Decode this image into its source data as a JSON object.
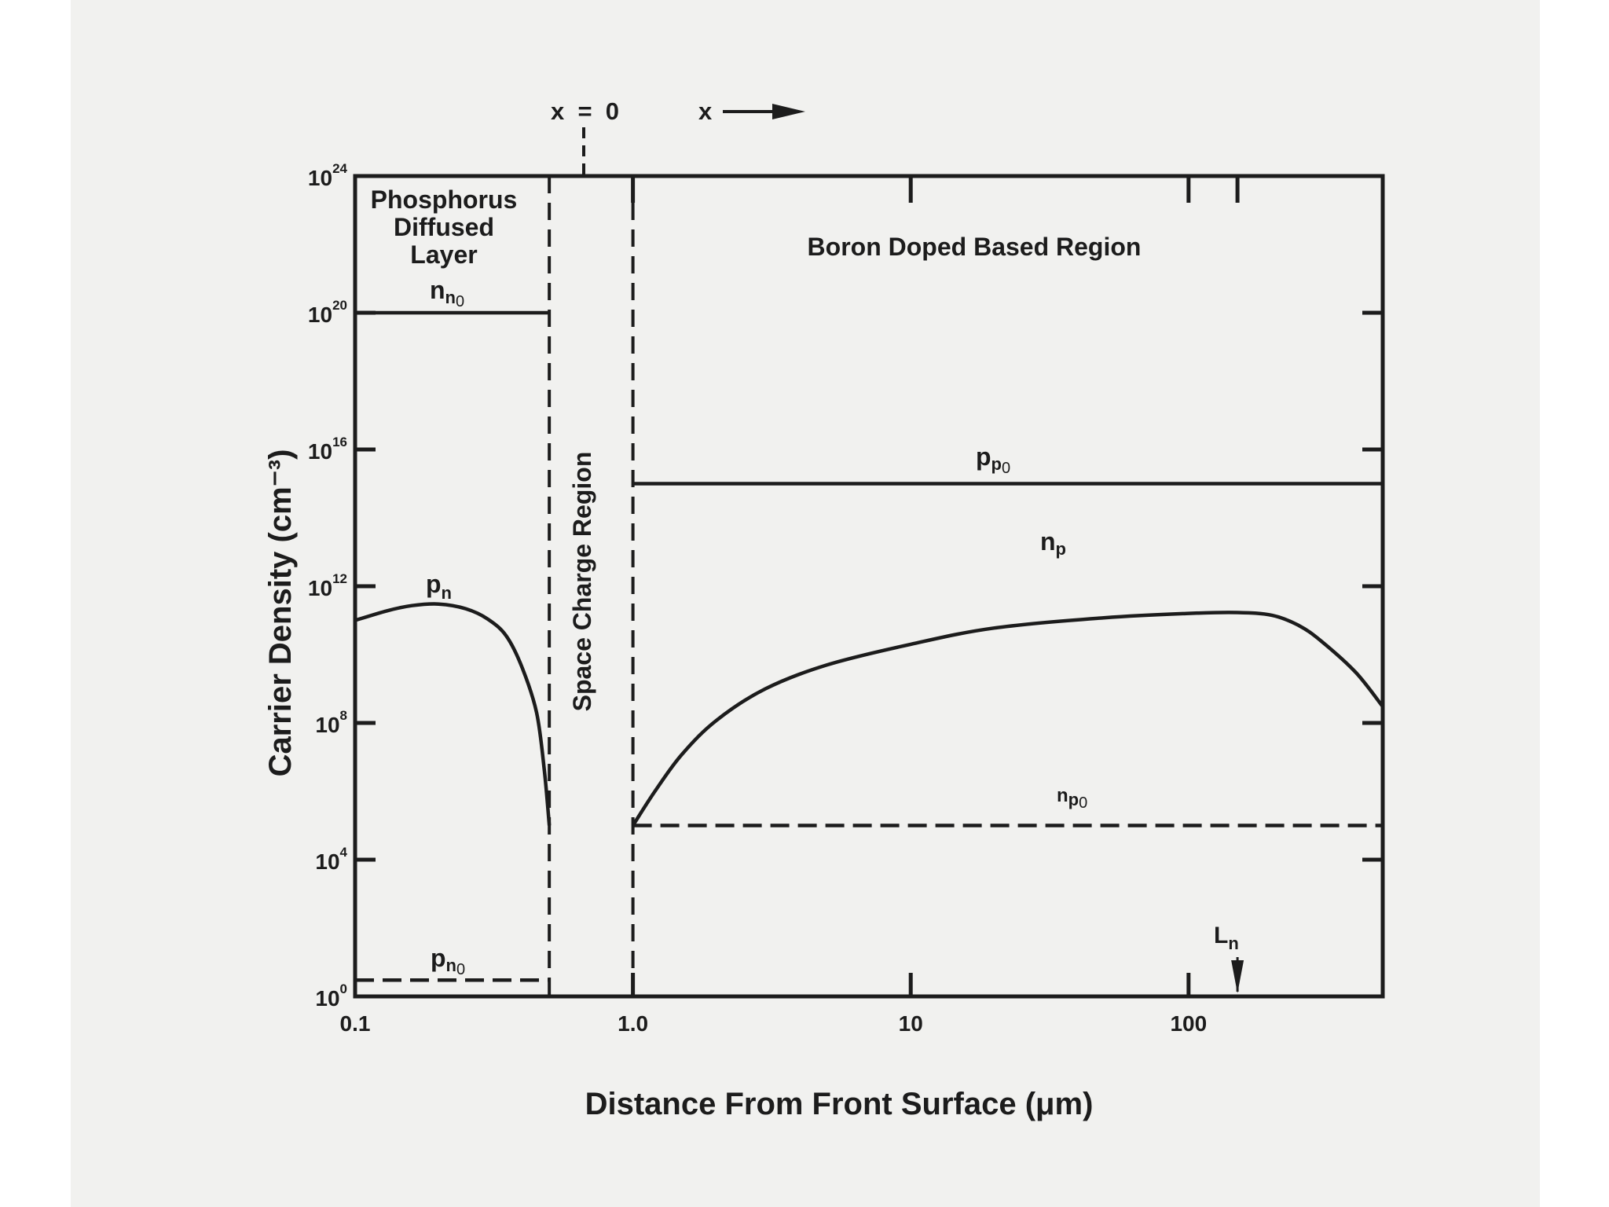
{
  "chart_data": {
    "type": "line",
    "xlabel": "Distance From Front Surface (μm)",
    "ylabel": "Carrier Density (cm⁻³)",
    "x_scale": "log",
    "y_scale": "log",
    "xlim": [
      0.1,
      500
    ],
    "ylim": [
      1,
      1e+24
    ],
    "x_ticks": [
      {
        "value": 0.1,
        "label": "0.1"
      },
      {
        "value": 1.0,
        "label": "1.0"
      },
      {
        "value": 10,
        "label": "10"
      },
      {
        "value": 100,
        "label": "100"
      }
    ],
    "y_ticks": [
      {
        "value": 1,
        "base": "10",
        "exp": "0"
      },
      {
        "value": 10000.0,
        "base": "10",
        "exp": "4"
      },
      {
        "value": 100000000.0,
        "base": "10",
        "exp": "8"
      },
      {
        "value": 1000000000000.0,
        "base": "10",
        "exp": "12"
      },
      {
        "value": 1e+16,
        "base": "10",
        "exp": "16"
      },
      {
        "value": 1e+20,
        "base": "10",
        "exp": "20"
      },
      {
        "value": 1e+24,
        "base": "10",
        "exp": "24"
      }
    ],
    "top_annotation": {
      "x0_label": "x  =  0",
      "x_label": "x"
    },
    "regions": [
      {
        "label_lines": [
          "Phosphorus",
          "Diffused",
          "Layer"
        ]
      },
      {
        "label": "Space Charge Region"
      },
      {
        "label": "Boron Doped Based Region"
      }
    ],
    "boundaries": [
      0.5,
      1.0
    ],
    "series": [
      {
        "base": "n",
        "sub": "n",
        "sub2": "0",
        "style": "solid",
        "points": [
          [
            0.1,
            1e+20
          ],
          [
            0.5,
            1e+20
          ]
        ]
      },
      {
        "base": "p",
        "sub": "n",
        "sub2": "0",
        "style": "dashed",
        "points": [
          [
            0.1,
            3
          ],
          [
            0.5,
            3
          ]
        ]
      },
      {
        "base": "p",
        "sub": "n",
        "style": "solid",
        "points": [
          [
            0.1,
            100000000000.0
          ],
          [
            0.13,
            190000000000.0
          ],
          [
            0.16,
            270000000000.0
          ],
          [
            0.2,
            300000000000.0
          ],
          [
            0.25,
            220000000000.0
          ],
          [
            0.3,
            110000000000.0
          ],
          [
            0.35,
            35000000000.0
          ],
          [
            0.4,
            4000000000.0
          ],
          [
            0.45,
            200000000.0
          ],
          [
            0.48,
            4000000.0
          ],
          [
            0.5,
            100000.0
          ]
        ]
      },
      {
        "base": "p",
        "sub": "p",
        "sub2": "0",
        "style": "solid",
        "points": [
          [
            1.0,
            1000000000000000.0
          ],
          [
            500,
            1000000000000000.0
          ]
        ]
      },
      {
        "base": "n",
        "sub": "p",
        "sub2": "0",
        "style": "dashed",
        "points": [
          [
            1.0,
            100000.0
          ],
          [
            500,
            100000.0
          ]
        ]
      },
      {
        "base": "n",
        "sub": "p",
        "style": "solid",
        "points": [
          [
            1.0,
            100000.0
          ],
          [
            1.2,
            1000000.0
          ],
          [
            1.5,
            12000000.0
          ],
          [
            2,
            120000000.0
          ],
          [
            3,
            1000000000.0
          ],
          [
            5,
            5000000000.0
          ],
          [
            10,
            20000000000.0
          ],
          [
            20,
            60000000000.0
          ],
          [
            50,
            120000000000.0
          ],
          [
            100,
            160000000000.0
          ],
          [
            150,
            170000000000.0
          ],
          [
            200,
            140000000000.0
          ],
          [
            250,
            70000000000.0
          ],
          [
            300,
            25000000000.0
          ],
          [
            400,
            3000000000.0
          ],
          [
            500,
            300000000.0
          ]
        ]
      }
    ],
    "markers": [
      {
        "base": "L",
        "sub": "n",
        "x": 150
      }
    ]
  }
}
